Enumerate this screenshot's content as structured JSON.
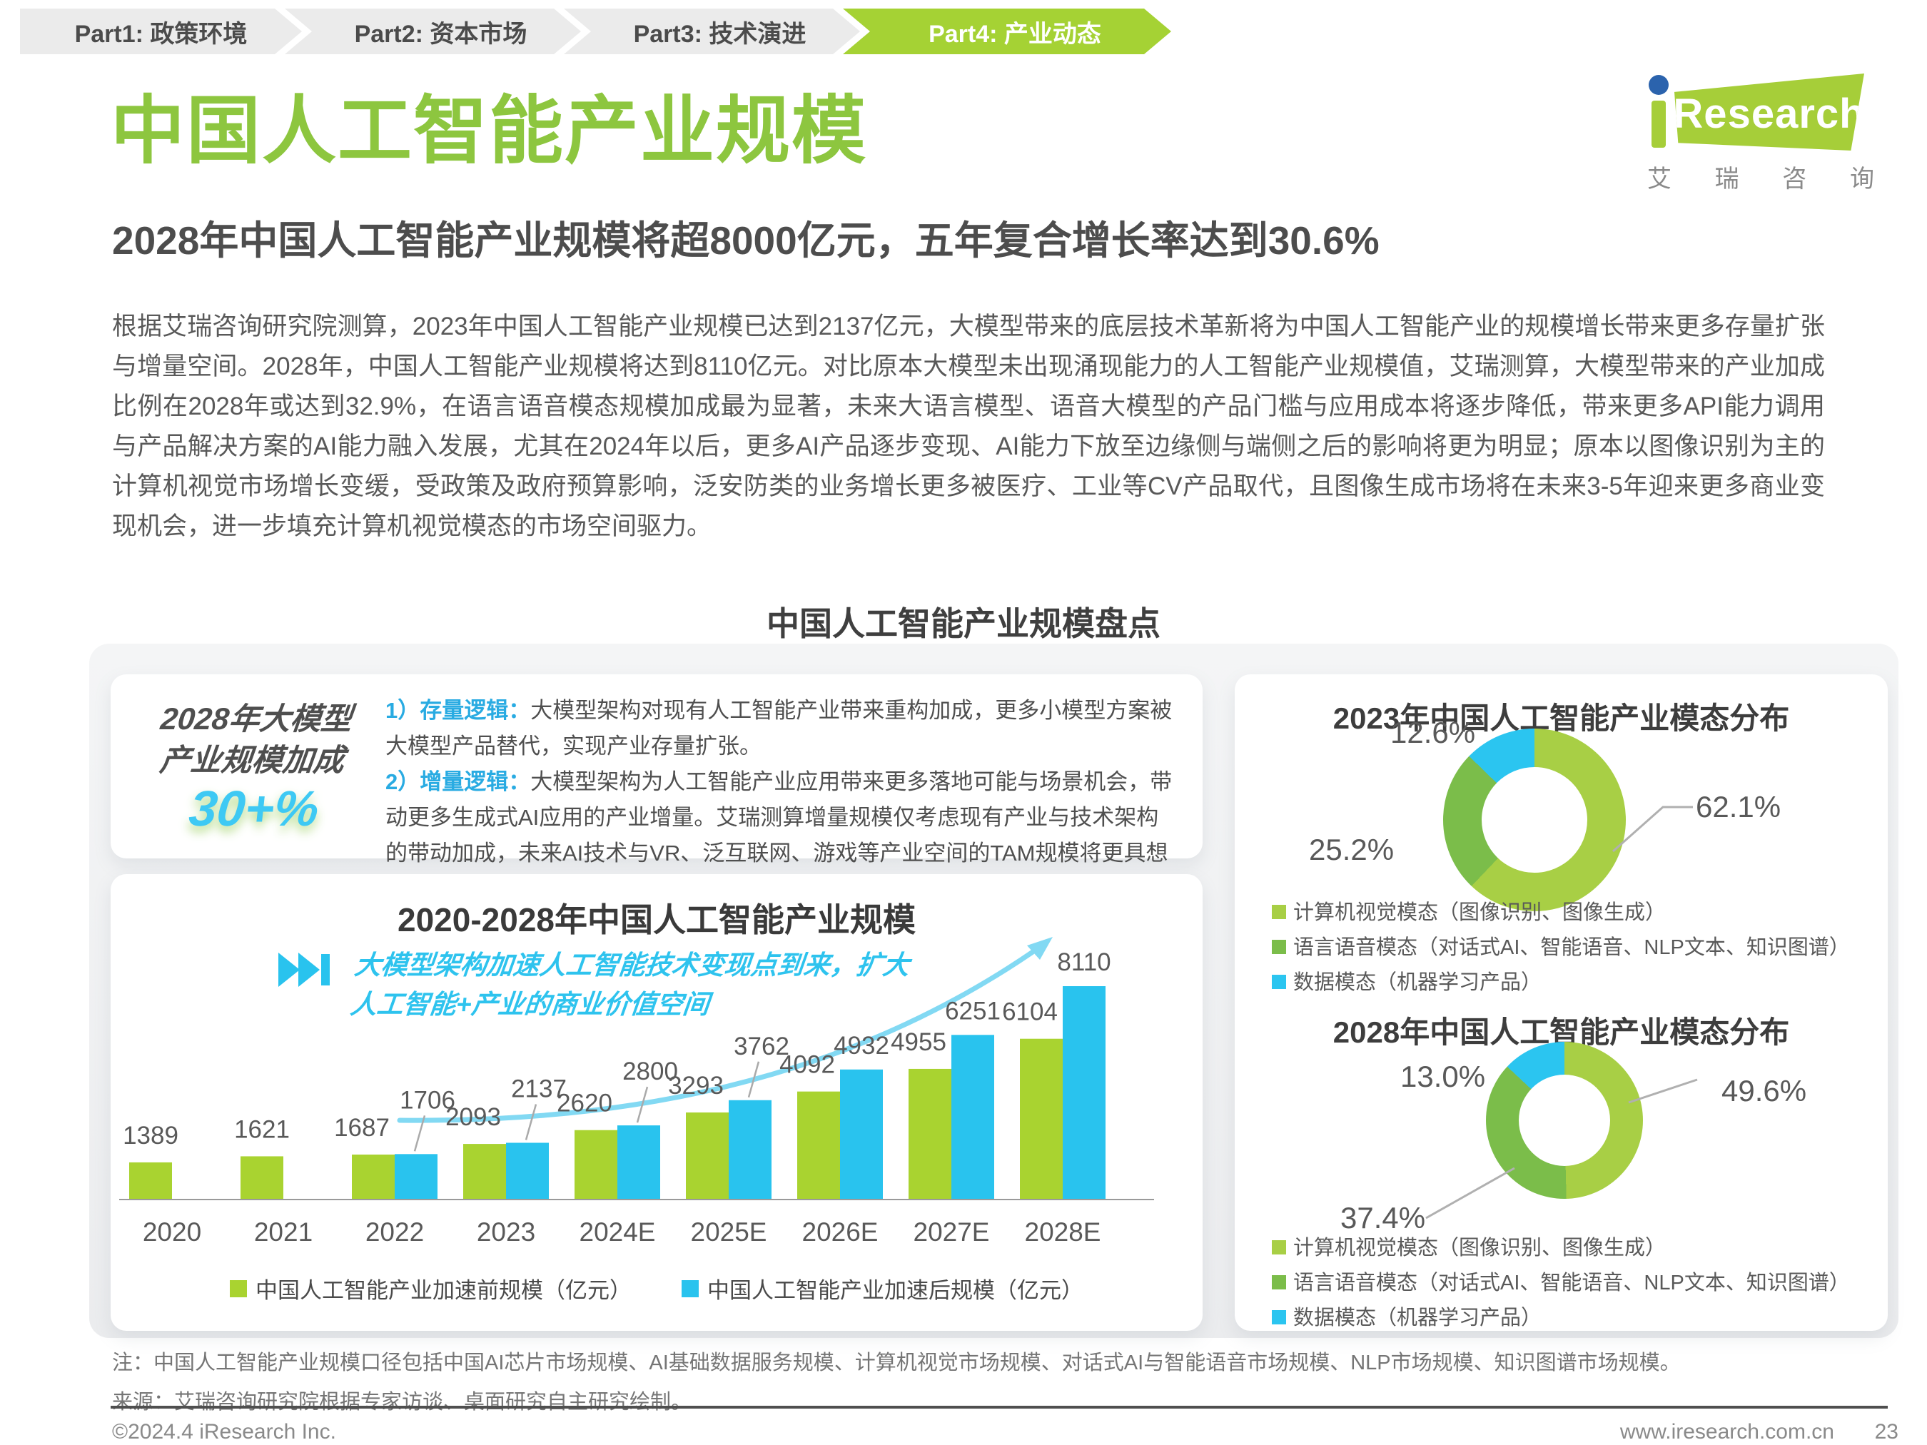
{
  "nav": {
    "items": [
      {
        "label": "Part1: 政策环境",
        "active": false
      },
      {
        "label": "Part2: 资本市场",
        "active": false
      },
      {
        "label": "Part3: 技术演进",
        "active": false
      },
      {
        "label": "Part4: 产业动态",
        "active": true
      }
    ]
  },
  "header": {
    "title": "中国人工智能产业规模",
    "logo": {
      "brand": "Research",
      "cn": [
        "艾",
        "瑞",
        "咨",
        "询"
      ]
    }
  },
  "subtitle": "2028年中国人工智能产业规模将超8000亿元，五年复合增长率达到30.6%",
  "paragraph": "根据艾瑞咨询研究院测算，2023年中国人工智能产业规模已达到2137亿元，大模型带来的底层技术革新将为中国人工智能产业的规模增长带来更多存量扩张与增量空间。2028年，中国人工智能产业规模将达到8110亿元。对比原本大模型未出现涌现能力的人工智能产业规模值，艾瑞测算，大模型带来的产业加成比例在2028年或达到32.9%，在语言语音模态规模加成最为显著，未来大语言模型、语音大模型的产品门槛与应用成本将逐步降低，带来更多API能力调用与产品解决方案的AI能力融入发展，尤其在2024年以后，更多AI产品逐步变现、AI能力下放至边缘侧与端侧之后的影响将更为明显；原本以图像识别为主的计算机视觉市场增长变缓，受政策及政府预算影响，泛安防类的业务增长更多被医疗、工业等CV产品取代，且图像生成市场将在未来3-5年迎来更多商业变现机会，进一步填充计算机视觉模态的市场空间驱力。",
  "section_title": "中国人工智能产业规模盘点",
  "info_card": {
    "headline_line1": "2028年大模型",
    "headline_line2": "产业规模加成",
    "highlight": "30+%",
    "point1_label": "1）存量逻辑：",
    "point1_text": "大模型架构对现有人工智能产业带来重构加成，更多小模型方案被大模型产品替代，实现产业存量扩张。",
    "point2_label": "2）增量逻辑：",
    "point2_text": "大模型架构为人工智能产业应用带来更多落地可能与场景机会，带动更多生成式AI应用的产业增量。艾瑞测算增量规模仅考虑现有产业与技术架构的带动加成，未来AI技术与VR、泛互联网、游戏等产业空间的TAM规模将更具想象空间。"
  },
  "chart_data": [
    {
      "type": "bar",
      "title": "2020-2028年中国人工智能产业规模",
      "annotation": "大模型架构加速人工智能技术变现点到来，扩大\n人工智能+产业的商业价值空间",
      "categories": [
        "2020",
        "2021",
        "2022",
        "2023",
        "2024E",
        "2025E",
        "2026E",
        "2027E",
        "2028E"
      ],
      "series": [
        {
          "name": "中国人工智能产业加速前规模（亿元）",
          "color": "#A9D330",
          "values": [
            1389,
            1621,
            1687,
            2093,
            2620,
            3293,
            4092,
            4955,
            6104
          ]
        },
        {
          "name": "中国人工智能产业加速后规模（亿元）",
          "color": "#29C3EE",
          "values": [
            null,
            null,
            1706,
            2137,
            2800,
            3762,
            4932,
            6251,
            8110
          ]
        }
      ],
      "ylim": [
        0,
        8110
      ],
      "unit": "亿元",
      "grid": false,
      "legend_position": "bottom"
    },
    {
      "type": "pie",
      "title": "2023年中国人工智能产业模态分布",
      "labels": [
        "计算机视觉模态（图像识别、图像生成）",
        "语言语音模态（对话式AI、智能语音、NLP文本、知识图谱）",
        "数据模态（机器学习产品）"
      ],
      "values": [
        62.1,
        25.2,
        12.6
      ],
      "colors": [
        "#A8CF45",
        "#7BBD4A",
        "#2BC5F0"
      ],
      "legend_position": "bottom"
    },
    {
      "type": "pie",
      "title": "2028年中国人工智能产业模态分布",
      "labels": [
        "计算机视觉模态（图像识别、图像生成）",
        "语言语音模态（对话式AI、智能语音、NLP文本、知识图谱）",
        "数据模态（机器学习产品）"
      ],
      "values": [
        49.6,
        37.4,
        13.0
      ],
      "colors": [
        "#A8CF45",
        "#7BBD4A",
        "#2BC5F0"
      ],
      "legend_position": "bottom"
    }
  ],
  "notes": {
    "note": "注：中国人工智能产业规模口径包括中国AI芯片市场规模、AI基础数据服务规模、计算机视觉市场规模、对话式AI与智能语音市场规模、NLP市场规模、知识图谱市场规模。",
    "source": "来源：艾瑞咨询研究院根据专家访谈、桌面研究自主研究绘制。"
  },
  "footer": {
    "copyright": "©2024.4 iResearch Inc.",
    "website": "www.iresearch.com.cn",
    "page": "23"
  },
  "colors": {
    "brand_green": "#A6CE39",
    "title_green": "#8DC63F",
    "nav_green": "#A5D234",
    "cyan": "#29C3EE",
    "arrow_cyan": "#82D9F3"
  }
}
